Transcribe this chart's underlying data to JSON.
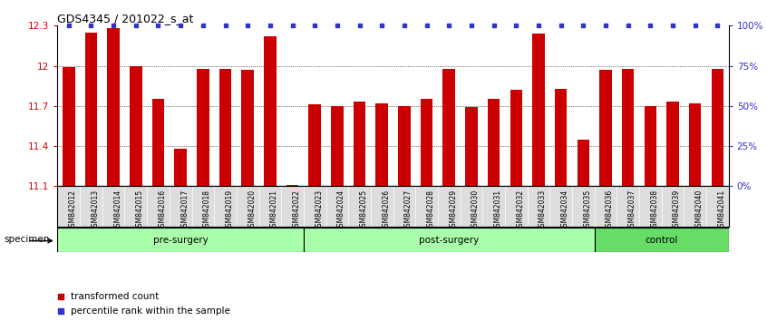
{
  "title": "GDS4345 / 201022_s_at",
  "categories": [
    "GSM842012",
    "GSM842013",
    "GSM842014",
    "GSM842015",
    "GSM842016",
    "GSM842017",
    "GSM842018",
    "GSM842019",
    "GSM842020",
    "GSM842021",
    "GSM842022",
    "GSM842023",
    "GSM842024",
    "GSM842025",
    "GSM842026",
    "GSM842027",
    "GSM842028",
    "GSM842029",
    "GSM842030",
    "GSM842031",
    "GSM842032",
    "GSM842033",
    "GSM842034",
    "GSM842035",
    "GSM842036",
    "GSM842037",
    "GSM842038",
    "GSM842039",
    "GSM842040",
    "GSM842041"
  ],
  "bar_values": [
    11.99,
    12.25,
    12.28,
    12.0,
    11.75,
    11.38,
    11.98,
    11.98,
    11.97,
    12.22,
    11.11,
    11.71,
    11.7,
    11.73,
    11.72,
    11.7,
    11.75,
    11.98,
    11.69,
    11.75,
    11.82,
    12.24,
    11.83,
    11.45,
    11.97,
    11.98,
    11.7,
    11.73,
    11.72,
    11.98
  ],
  "percentile_values": [
    100,
    100,
    100,
    100,
    100,
    100,
    100,
    100,
    100,
    100,
    100,
    100,
    100,
    100,
    100,
    100,
    100,
    100,
    100,
    100,
    100,
    100,
    100,
    100,
    100,
    100,
    100,
    100,
    100,
    100
  ],
  "bar_color": "#cc0000",
  "percentile_color": "#3333cc",
  "ymin": 11.1,
  "ymax": 12.3,
  "yticks_left": [
    11.1,
    11.4,
    11.7,
    12.0,
    12.3
  ],
  "ytick_labels_left": [
    "11.1",
    "11.4",
    "11.7",
    "12",
    "12.3"
  ],
  "yticks_right_pct": [
    0,
    25,
    50,
    75,
    100
  ],
  "ytick_labels_right": [
    "0%",
    "25%",
    "50%",
    "75%",
    "100%"
  ],
  "groups": [
    {
      "label": "pre-surgery",
      "start": 0,
      "end": 11,
      "color": "#aaffaa"
    },
    {
      "label": "post-surgery",
      "start": 11,
      "end": 24,
      "color": "#aaffaa"
    },
    {
      "label": "control",
      "start": 24,
      "end": 30,
      "color": "#66dd66"
    }
  ],
  "legend_items": [
    {
      "label": "transformed count",
      "color": "#cc0000"
    },
    {
      "label": "percentile rank within the sample",
      "color": "#3333cc"
    }
  ],
  "specimen_label": "specimen",
  "title_color": "#000000",
  "label_color_left": "#cc0000",
  "label_color_right": "#3333cc"
}
